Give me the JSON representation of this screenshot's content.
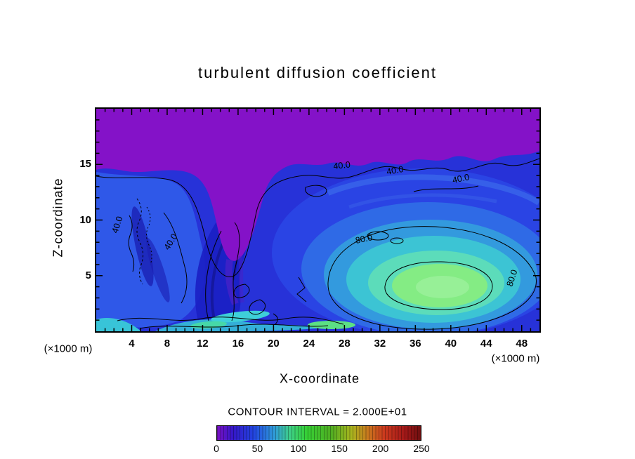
{
  "title": "turbulent diffusion coefficient",
  "axis": {
    "x_label": "X-coordinate",
    "y_label": "Z-coordinate",
    "x_units_left": "(×1000 m)",
    "x_units_right": "(×1000 m)"
  },
  "chart_data": {
    "type": "heatmap",
    "title": "turbulent diffusion coefficient",
    "xlabel": "X-coordinate",
    "ylabel": "Z-coordinate",
    "units": "(×1000 m)",
    "xlim": [
      0,
      50
    ],
    "ylim": [
      0,
      20
    ],
    "x_ticks": [
      4,
      8,
      12,
      16,
      20,
      24,
      28,
      32,
      36,
      40,
      44,
      48
    ],
    "y_ticks": [
      5,
      10,
      15
    ],
    "x_minor_step": 1,
    "y_minor_step": 1,
    "contour_interval": 20,
    "contour_interval_label": "CONTOUR INTERVAL = 2.000E+01",
    "contour_labels": [
      "40.0",
      "80.0"
    ],
    "colorbar": {
      "min": 0,
      "max": 250,
      "ticks": [
        0,
        50,
        100,
        150,
        200,
        250
      ],
      "stops": [
        {
          "at": 0,
          "color": "#7a10c4"
        },
        {
          "at": 20,
          "color": "#3418c8"
        },
        {
          "at": 45,
          "color": "#2244e0"
        },
        {
          "at": 70,
          "color": "#2f9ad8"
        },
        {
          "at": 90,
          "color": "#3ecf86"
        },
        {
          "at": 110,
          "color": "#35d035"
        },
        {
          "at": 140,
          "color": "#4fae22"
        },
        {
          "at": 165,
          "color": "#a8b41e"
        },
        {
          "at": 185,
          "color": "#c8781e"
        },
        {
          "at": 205,
          "color": "#cc3a1e"
        },
        {
          "at": 230,
          "color": "#a31818"
        },
        {
          "at": 250,
          "color": "#6e0f10"
        }
      ]
    },
    "field_colors": {
      "low_purple": "#8412c8",
      "mid_blue": "#2732d8",
      "cyan": "#3cc4d4",
      "high_green": "#84ec84"
    },
    "field_estimate": {
      "comment": "approximate diffusion coefficient values read from colors",
      "x": [
        2,
        6,
        10,
        14,
        18,
        22,
        26,
        30,
        34,
        38,
        42,
        46
      ],
      "z": [
        18,
        15,
        12,
        9,
        6,
        3,
        1
      ],
      "values": [
        [
          5,
          5,
          5,
          5,
          5,
          5,
          5,
          5,
          5,
          8,
          10,
          12
        ],
        [
          12,
          6,
          5,
          5,
          18,
          25,
          30,
          30,
          35,
          40,
          38,
          35
        ],
        [
          40,
          30,
          12,
          15,
          25,
          30,
          35,
          42,
          45,
          48,
          45,
          40
        ],
        [
          45,
          38,
          20,
          20,
          28,
          32,
          42,
          52,
          58,
          58,
          52,
          46
        ],
        [
          42,
          45,
          35,
          32,
          32,
          38,
          52,
          68,
          78,
          80,
          68,
          52
        ],
        [
          38,
          42,
          46,
          42,
          38,
          48,
          62,
          85,
          98,
          102,
          88,
          60
        ],
        [
          42,
          52,
          56,
          50,
          46,
          62,
          72,
          88,
          96,
          95,
          78,
          55
        ]
      ]
    }
  }
}
